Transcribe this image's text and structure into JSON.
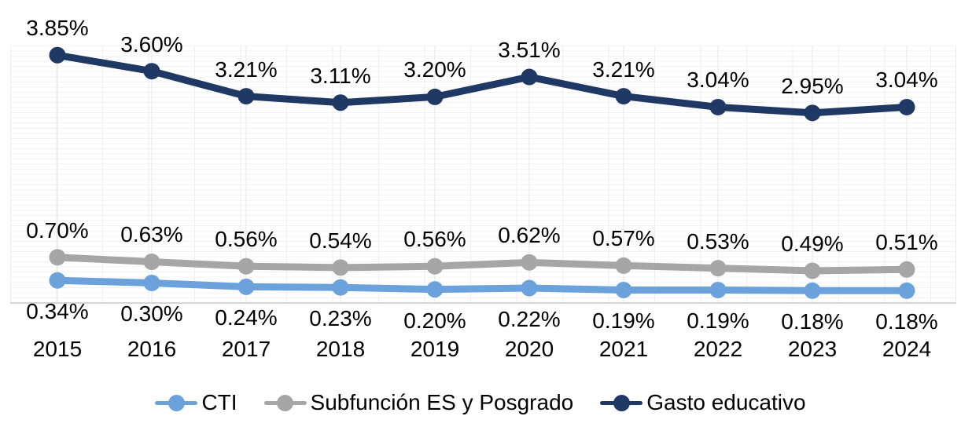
{
  "chart_data": {
    "type": "line",
    "title": "",
    "xlabel": "",
    "ylabel": "",
    "ylim": [
      0,
      4
    ],
    "grid": "faint spreadsheet grid background, vertical gridline per category",
    "legend_position": "bottom",
    "categories": [
      "2015",
      "2016",
      "2017",
      "2018",
      "2019",
      "2020",
      "2021",
      "2022",
      "2023",
      "2024"
    ],
    "series": [
      {
        "name": "CTI",
        "color": "#6BA2DC",
        "label_position": "below",
        "values": [
          0.34,
          0.3,
          0.24,
          0.23,
          0.2,
          0.22,
          0.19,
          0.19,
          0.18,
          0.18
        ],
        "labels": [
          "0.34%",
          "0.30%",
          "0.24%",
          "0.23%",
          "0.20%",
          "0.22%",
          "0.19%",
          "0.19%",
          "0.18%",
          "0.18%"
        ]
      },
      {
        "name": "Subfunción ES y Posgrado",
        "color": "#A6A6A6",
        "label_position": "above",
        "values": [
          0.7,
          0.63,
          0.56,
          0.54,
          0.56,
          0.62,
          0.57,
          0.53,
          0.49,
          0.51
        ],
        "labels": [
          "0.70%",
          "0.63%",
          "0.56%",
          "0.54%",
          "0.56%",
          "0.62%",
          "0.57%",
          "0.53%",
          "0.49%",
          "0.51%"
        ]
      },
      {
        "name": "Gasto educativo",
        "color": "#1F3864",
        "label_position": "above",
        "values": [
          3.85,
          3.6,
          3.21,
          3.11,
          3.2,
          3.51,
          3.21,
          3.04,
          2.95,
          3.04
        ],
        "labels": [
          "3.85%",
          "3.60%",
          "3.21%",
          "3.11%",
          "3.20%",
          "3.51%",
          "3.21%",
          "3.04%",
          "2.95%",
          "3.04%"
        ]
      }
    ],
    "gridline_color": "#e7e7e7"
  }
}
